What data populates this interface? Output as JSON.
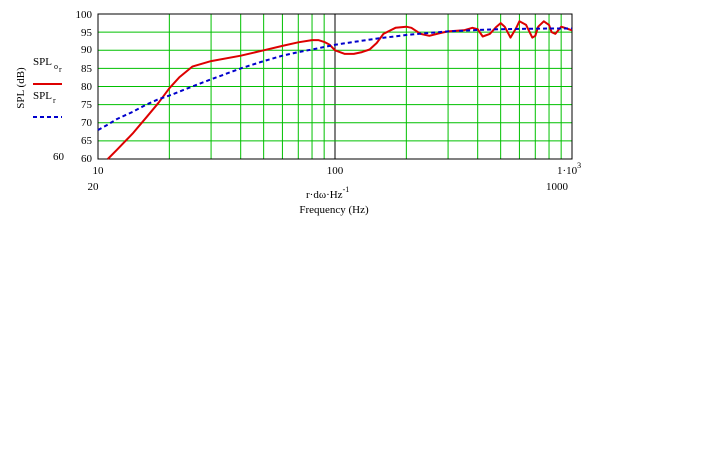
{
  "chart_data": {
    "type": "line",
    "xlabel_expr": "r·dω·Hz",
    "xlabel_expr_sup": "-1",
    "xlabel": "Frequency (Hz)",
    "ylabel": "SPL (dB)",
    "x_scale": "log",
    "xlim": [
      10,
      1000
    ],
    "ylim": [
      60,
      100
    ],
    "grid": true,
    "x_tick_labels": [
      "10",
      "100",
      "1·10",
      "20",
      "1000"
    ],
    "x_tick_sup": "3",
    "y_tick_labels": [
      "100",
      "95",
      "90",
      "85",
      "80",
      "75",
      "70",
      "65",
      "60"
    ],
    "y_min_label": "60",
    "legend_position": "left",
    "series": [
      {
        "name": "SPL",
        "name_sub": "o",
        "name_subsub": "r",
        "color": "#dd0000",
        "style": "solid",
        "x": [
          11,
          12,
          14,
          16,
          18,
          20,
          22,
          25,
          30,
          40,
          50,
          60,
          70,
          80,
          85,
          90,
          95,
          100,
          110,
          120,
          130,
          140,
          150,
          160,
          180,
          200,
          210,
          230,
          250,
          280,
          300,
          350,
          380,
          400,
          420,
          450,
          480,
          500,
          520,
          550,
          580,
          600,
          640,
          680,
          700,
          720,
          760,
          800,
          820,
          850,
          900,
          950,
          1000
        ],
        "y": [
          60,
          62.5,
          67,
          71.5,
          75.5,
          79.5,
          82.5,
          85.5,
          87,
          88.5,
          90,
          91.2,
          92.2,
          92.8,
          92.8,
          92.3,
          91.5,
          90,
          89,
          89,
          89.5,
          90.2,
          92,
          94.5,
          96.2,
          96.5,
          96.2,
          94.5,
          94,
          94.8,
          95.2,
          95.5,
          96.2,
          95.8,
          93.8,
          94.5,
          96.5,
          97.5,
          96.5,
          93.5,
          96,
          98,
          97,
          93.5,
          94,
          96.5,
          98,
          97,
          95,
          94.5,
          96.5,
          96,
          95.5
        ]
      },
      {
        "name": "SPL",
        "name_sub": "r",
        "color": "#0000cc",
        "style": "dashed",
        "x": [
          10,
          11,
          12,
          14,
          16,
          18,
          20,
          25,
          30,
          40,
          50,
          60,
          70,
          80,
          100,
          120,
          150,
          200,
          250,
          300,
          400,
          500,
          600,
          800,
          1000
        ],
        "y": [
          68,
          69.5,
          71,
          73,
          75,
          76.5,
          77.5,
          80,
          82,
          85,
          87,
          88.5,
          89.5,
          90.2,
          91.5,
          92.3,
          93.2,
          94.2,
          94.8,
          95.2,
          95.6,
          95.8,
          95.9,
          96,
          96
        ]
      }
    ]
  }
}
